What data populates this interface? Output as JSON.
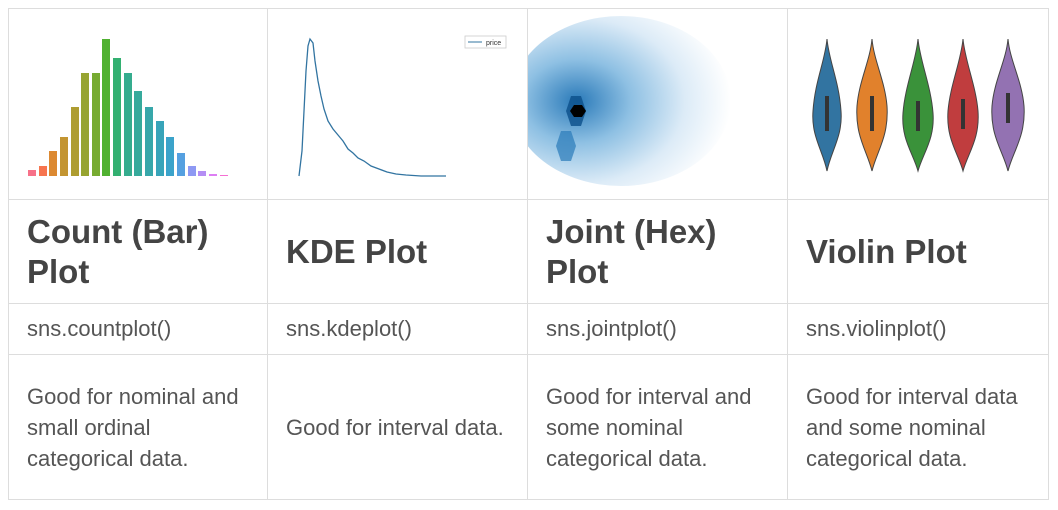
{
  "table": {
    "columns": [
      {
        "title": "Count (Bar) Plot",
        "code": "sns.countplot()",
        "description": "Good for nominal and small ordinal categorical data."
      },
      {
        "title": "KDE Plot",
        "code": "sns.kdeplot()",
        "description": "Good for interval data."
      },
      {
        "title": "Joint (Hex) Plot",
        "code": "sns.jointplot()",
        "description": "Good for interval and some nominal categorical data."
      },
      {
        "title": "Violin Plot",
        "code": "sns.violinplot()",
        "description": "Good for interval data and some nominal categorical data."
      }
    ],
    "kde_legend": "price"
  }
}
